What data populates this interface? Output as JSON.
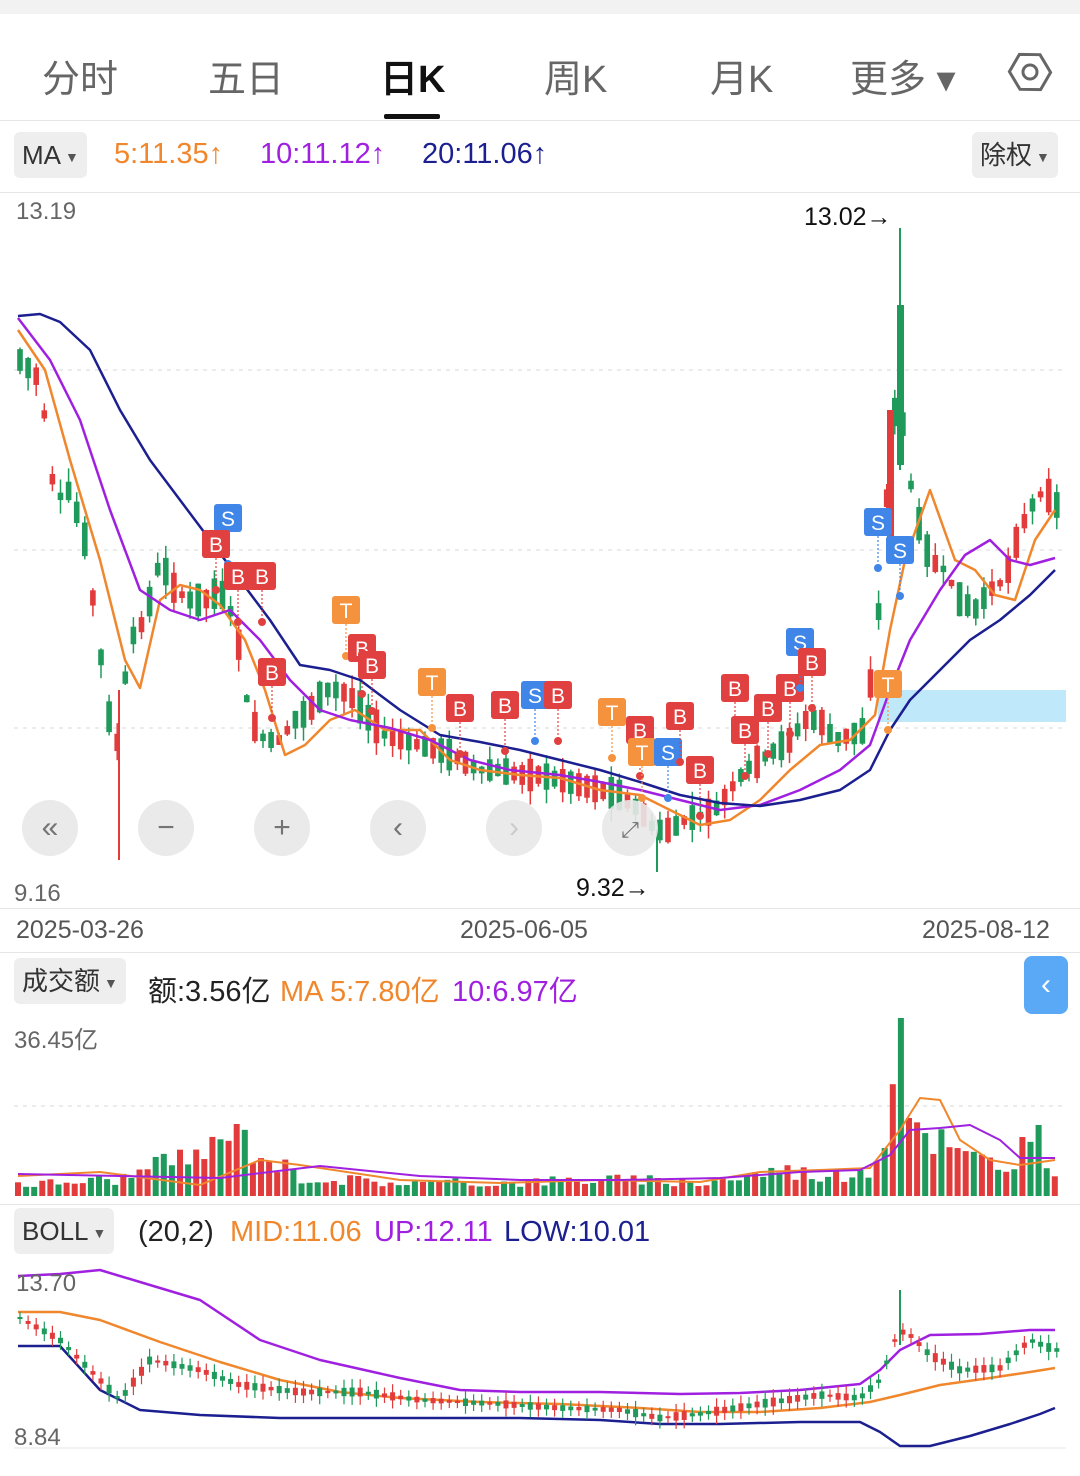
{
  "tabs": [
    {
      "label": "分时",
      "active": false
    },
    {
      "label": "五日",
      "active": false
    },
    {
      "label": "日K",
      "active": true
    },
    {
      "label": "周K",
      "active": false
    },
    {
      "label": "月K",
      "active": false
    },
    {
      "label": "更多 ▾",
      "active": false
    }
  ],
  "main": {
    "indicator": "MA",
    "ma5": "5:11.35↑",
    "ma10": "10:11.12↑",
    "ma20": "20:11.06↑",
    "adjust": "除权",
    "y_top": "13.19",
    "y_bottom": "9.16",
    "high_marker": "13.02→",
    "low_marker": "9.32→",
    "dates": [
      "2025-03-26",
      "2025-06-05",
      "2025-08-12"
    ]
  },
  "volume": {
    "indicator": "成交额",
    "amount": "额:3.56亿",
    "ma5": "MA 5:7.80亿",
    "ma10": "10:6.97亿",
    "y_top": "36.45亿"
  },
  "boll": {
    "indicator": "BOLL",
    "params": "(20,2)",
    "mid": "MID:11.06",
    "up": "UP:12.11",
    "low": "LOW:10.01",
    "y_top": "13.70",
    "y_bottom": "8.84"
  },
  "controls": [
    "fast-rewind",
    "zoom-out",
    "zoom-in",
    "previous",
    "next",
    "fullscreen"
  ],
  "colors": {
    "up": "#e23b3b",
    "down": "#1f9a5a",
    "ma5": "#f0872d",
    "ma10": "#a020e0",
    "ma20": "#1b1f8f",
    "buy": "#e04040",
    "sell": "#3f86e8",
    "t": "#f5923e"
  },
  "chart_data": {
    "type": "candlestick",
    "y_range": [
      9.16,
      13.19
    ],
    "high": 13.02,
    "low": 9.32,
    "volume_max": "36.45亿",
    "boll_range": [
      8.84,
      13.7
    ],
    "signals": [
      "S",
      "B",
      "B",
      "B",
      "B",
      "T",
      "B",
      "B",
      "T",
      "B",
      "B",
      "S",
      "B",
      "T",
      "B",
      "T",
      "S",
      "B",
      "B",
      "B",
      "B",
      "B",
      "B",
      "S",
      "B",
      "S",
      "S",
      "T"
    ]
  }
}
